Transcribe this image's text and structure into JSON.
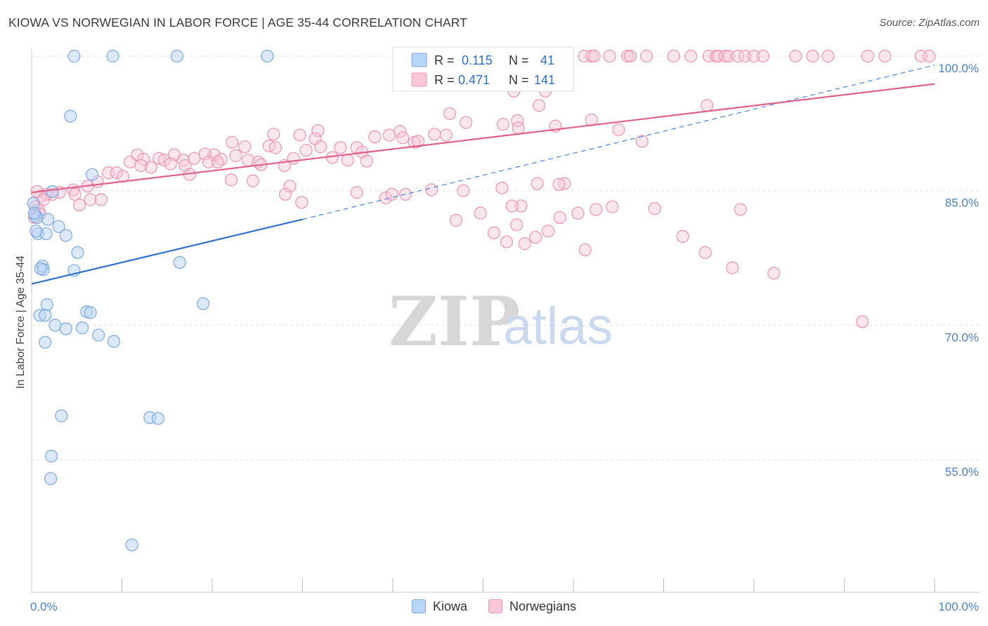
{
  "title": "KIOWA VS NORWEGIAN IN LABOR FORCE | AGE 35-44 CORRELATION CHART",
  "source": "Source: ZipAtlas.com",
  "watermark": {
    "zip": "ZIP",
    "atlas": "atlas"
  },
  "legend_stats": [
    {
      "series": "Kiowa",
      "r_label": "R =",
      "r_value": "0.115",
      "n_label": "N =",
      "n_value": "41"
    },
    {
      "series": "Norwegians",
      "r_label": "R =",
      "r_value": "0.471",
      "n_label": "N =",
      "n_value": "141"
    }
  ],
  "bottom_legend": [
    {
      "label": "Kiowa"
    },
    {
      "label": "Norwegians"
    }
  ],
  "colors": {
    "kiowa_fill": "#b8d4f6",
    "kiowa_stroke": "#7ba8e0",
    "kiowa_line": "#2e6fcf",
    "norw_fill": "#f9c8d8",
    "norw_stroke": "#eb93b3",
    "norw_line": "#e0608d",
    "tick_label": "#4a7fc8",
    "grid": "#e0e0e0"
  },
  "chart_data": {
    "type": "scatter",
    "title": "KIOWA VS NORWEGIAN IN LABOR FORCE | AGE 35-44 CORRELATION CHART",
    "xlabel": "",
    "ylabel": "In Labor Force | Age 35-44",
    "xlim": [
      0,
      100
    ],
    "ylim": [
      42,
      101
    ],
    "y_ticks": [
      {
        "value": 55,
        "label": "55.0%"
      },
      {
        "value": 70,
        "label": "70.0%"
      },
      {
        "value": 85,
        "label": "85.0%"
      },
      {
        "value": 100,
        "label": "100.0%"
      }
    ],
    "x_tick_labels": [
      {
        "value": 0,
        "label": "0.0%"
      },
      {
        "value": 100,
        "label": "100.0%"
      }
    ],
    "x_minor_ticks": [
      10,
      20,
      30,
      40,
      50,
      60,
      70,
      80,
      90
    ],
    "grid": true,
    "legend_position": "top-center",
    "series": [
      {
        "name": "Kiowa",
        "points": [
          [
            4.7,
            100
          ],
          [
            9.0,
            100
          ],
          [
            16.1,
            100
          ],
          [
            26.1,
            100
          ],
          [
            4.3,
            93.3
          ],
          [
            6.7,
            86.8
          ],
          [
            2.3,
            84.9
          ],
          [
            0.2,
            83.6
          ],
          [
            0.4,
            82.2
          ],
          [
            0.6,
            82.0
          ],
          [
            1.8,
            81.8
          ],
          [
            3.0,
            81.0
          ],
          [
            0.7,
            80.2
          ],
          [
            1.6,
            80.2
          ],
          [
            3.8,
            80.0
          ],
          [
            5.1,
            78.1
          ],
          [
            16.4,
            77.0
          ],
          [
            1.2,
            76.6
          ],
          [
            1.3,
            76.2
          ],
          [
            4.7,
            76.1
          ],
          [
            1.7,
            72.3
          ],
          [
            19.0,
            72.4
          ],
          [
            6.1,
            71.5
          ],
          [
            6.5,
            71.4
          ],
          [
            0.9,
            71.1
          ],
          [
            1.5,
            71.1
          ],
          [
            2.6,
            70.0
          ],
          [
            3.8,
            69.6
          ],
          [
            5.6,
            69.7
          ],
          [
            7.4,
            68.9
          ],
          [
            1.5,
            68.1
          ],
          [
            9.1,
            68.2
          ],
          [
            3.3,
            59.9
          ],
          [
            13.1,
            59.7
          ],
          [
            14.0,
            59.6
          ],
          [
            2.2,
            55.4
          ],
          [
            2.1,
            52.9
          ],
          [
            11.1,
            45.5
          ],
          [
            0.3,
            82.5
          ],
          [
            1.0,
            76.3
          ],
          [
            0.5,
            80.5
          ]
        ]
      },
      {
        "name": "Norwegians",
        "points": [
          [
            61.2,
            100
          ],
          [
            62.0,
            100
          ],
          [
            62.3,
            100
          ],
          [
            64.0,
            100
          ],
          [
            66.0,
            100
          ],
          [
            66.3,
            100
          ],
          [
            68.1,
            100
          ],
          [
            71.1,
            100
          ],
          [
            73.0,
            100
          ],
          [
            75.0,
            100
          ],
          [
            75.8,
            100
          ],
          [
            76.0,
            100
          ],
          [
            76.8,
            100
          ],
          [
            77.2,
            100
          ],
          [
            78.2,
            100
          ],
          [
            79.0,
            100
          ],
          [
            80.0,
            100
          ],
          [
            81.0,
            100
          ],
          [
            84.6,
            100
          ],
          [
            86.5,
            100
          ],
          [
            88.2,
            100
          ],
          [
            92.6,
            100
          ],
          [
            94.5,
            100
          ],
          [
            98.5,
            100
          ],
          [
            99.4,
            100
          ],
          [
            53.4,
            96.1
          ],
          [
            56.9,
            96.1
          ],
          [
            46.3,
            93.6
          ],
          [
            48.1,
            92.6
          ],
          [
            52.2,
            92.4
          ],
          [
            56.2,
            94.5
          ],
          [
            74.8,
            94.5
          ],
          [
            53.8,
            92.8
          ],
          [
            53.9,
            92.0
          ],
          [
            31.7,
            91.7
          ],
          [
            26.8,
            91.3
          ],
          [
            29.7,
            91.2
          ],
          [
            31.4,
            90.8
          ],
          [
            38.0,
            91.0
          ],
          [
            39.6,
            91.2
          ],
          [
            40.8,
            91.6
          ],
          [
            41.1,
            90.9
          ],
          [
            42.4,
            90.4
          ],
          [
            42.8,
            90.5
          ],
          [
            44.6,
            91.3
          ],
          [
            45.9,
            91.2
          ],
          [
            62.0,
            92.9
          ],
          [
            58.0,
            92.2
          ],
          [
            65.0,
            91.8
          ],
          [
            67.6,
            90.5
          ],
          [
            22.2,
            90.4
          ],
          [
            23.6,
            89.9
          ],
          [
            26.3,
            90.0
          ],
          [
            27.0,
            89.8
          ],
          [
            32.0,
            89.9
          ],
          [
            34.2,
            89.8
          ],
          [
            36.0,
            89.8
          ],
          [
            36.6,
            89.3
          ],
          [
            20.2,
            89.0
          ],
          [
            21.0,
            88.5
          ],
          [
            22.6,
            88.9
          ],
          [
            24.0,
            88.4
          ],
          [
            25.1,
            88.2
          ],
          [
            25.4,
            87.9
          ],
          [
            28.0,
            87.8
          ],
          [
            29.0,
            88.6
          ],
          [
            30.4,
            89.5
          ],
          [
            33.3,
            88.7
          ],
          [
            35.0,
            88.4
          ],
          [
            37.1,
            88.3
          ],
          [
            18.0,
            88.6
          ],
          [
            19.2,
            89.1
          ],
          [
            19.6,
            88.2
          ],
          [
            20.6,
            88.2
          ],
          [
            15.8,
            89.0
          ],
          [
            16.8,
            88.4
          ],
          [
            17.0,
            87.8
          ],
          [
            10.9,
            88.2
          ],
          [
            11.7,
            89.0
          ],
          [
            12.4,
            88.5
          ],
          [
            13.2,
            87.6
          ],
          [
            14.1,
            88.6
          ],
          [
            14.7,
            88.4
          ],
          [
            15.4,
            88.0
          ],
          [
            8.5,
            87.0
          ],
          [
            9.4,
            87.0
          ],
          [
            10.1,
            86.6
          ],
          [
            12.1,
            87.8
          ],
          [
            17.5,
            86.8
          ],
          [
            22.1,
            86.2
          ],
          [
            24.5,
            86.1
          ],
          [
            28.6,
            85.5
          ],
          [
            7.3,
            86.0
          ],
          [
            6.2,
            85.5
          ],
          [
            4.6,
            85.1
          ],
          [
            4.8,
            84.6
          ],
          [
            3.1,
            84.8
          ],
          [
            2.3,
            84.6
          ],
          [
            1.6,
            84.6
          ],
          [
            1.0,
            84.4
          ],
          [
            0.6,
            84.9
          ],
          [
            1.3,
            84.0
          ],
          [
            6.5,
            84.0
          ],
          [
            7.7,
            84.0
          ],
          [
            0.4,
            83.2
          ],
          [
            0.8,
            82.9
          ],
          [
            0.9,
            82.4
          ],
          [
            0.3,
            82.0
          ],
          [
            5.3,
            83.4
          ],
          [
            28.1,
            84.6
          ],
          [
            29.9,
            83.7
          ],
          [
            39.2,
            84.2
          ],
          [
            39.9,
            84.6
          ],
          [
            41.4,
            84.6
          ],
          [
            44.3,
            85.1
          ],
          [
            47.8,
            85.0
          ],
          [
            52.1,
            85.3
          ],
          [
            49.7,
            82.5
          ],
          [
            54.2,
            83.3
          ],
          [
            56.0,
            85.8
          ],
          [
            59.0,
            85.8
          ],
          [
            58.5,
            82.0
          ],
          [
            60.5,
            82.5
          ],
          [
            47.0,
            81.7
          ],
          [
            52.6,
            79.3
          ],
          [
            53.7,
            81.2
          ],
          [
            57.2,
            80.5
          ],
          [
            51.2,
            80.3
          ],
          [
            54.6,
            79.1
          ],
          [
            55.8,
            79.8
          ],
          [
            61.3,
            78.4
          ],
          [
            53.2,
            83.3
          ],
          [
            62.5,
            82.9
          ],
          [
            64.3,
            83.2
          ],
          [
            69.0,
            83.0
          ],
          [
            72.1,
            79.9
          ],
          [
            74.6,
            78.1
          ],
          [
            77.6,
            76.4
          ],
          [
            78.5,
            82.9
          ],
          [
            82.2,
            75.8
          ],
          [
            92.0,
            70.4
          ],
          [
            58.4,
            85.7
          ],
          [
            36.0,
            84.8
          ]
        ]
      }
    ],
    "trend_lines": [
      {
        "series": "Kiowa",
        "style": "solid",
        "from": [
          0,
          74.6
        ],
        "to": [
          30,
          81.8
        ]
      },
      {
        "series": "Kiowa",
        "style": "dashed",
        "from": [
          30,
          81.8
        ],
        "to": [
          100,
          99.0
        ]
      },
      {
        "series": "Norwegians",
        "style": "solid",
        "from": [
          0,
          84.8
        ],
        "to": [
          100,
          96.9
        ]
      }
    ]
  }
}
